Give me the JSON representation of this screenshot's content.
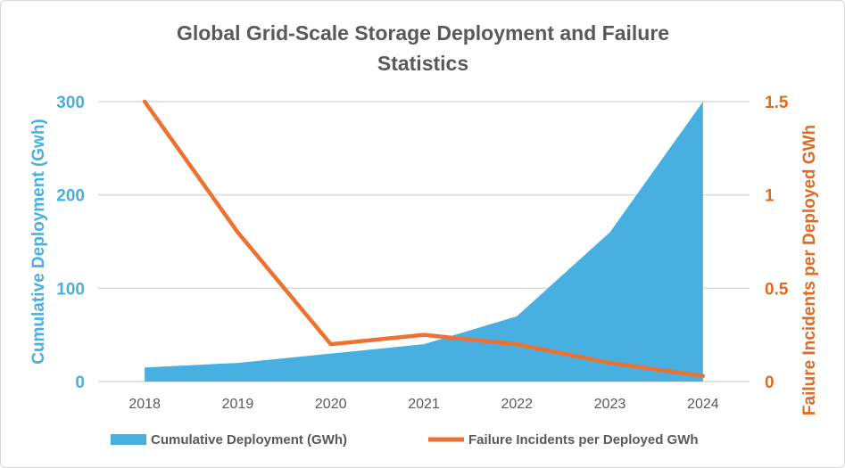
{
  "chart_data": {
    "type": "area+line",
    "title": "Global Grid-Scale Storage Deployment and Failure Statistics",
    "title_lines": [
      "Global Grid-Scale Storage Deployment and Failure",
      "Statistics"
    ],
    "categories": [
      "2018",
      "2019",
      "2020",
      "2021",
      "2022",
      "2023",
      "2024"
    ],
    "y_left": {
      "label": "Cumulative Deployment (Gwh)",
      "range": [
        0,
        300
      ],
      "ticks": [
        "0",
        "100",
        "200",
        "300"
      ],
      "tick_values": [
        0,
        100,
        200,
        300
      ],
      "color": "#47b0e0"
    },
    "y_right": {
      "label": "Failure Incidents per Deployed GWh",
      "range": [
        0,
        1.5
      ],
      "ticks": [
        "0",
        "0.5",
        "1",
        "1.5"
      ],
      "tick_values": [
        0,
        0.5,
        1,
        1.5
      ],
      "color": "#e06a22"
    },
    "grid": true,
    "legend_position": "bottom",
    "series": [
      {
        "name": "Cumulative Deployment (GWh)",
        "type": "area",
        "axis": "left",
        "color": "#47b0e0",
        "values": [
          15,
          20,
          30,
          40,
          70,
          160,
          300
        ]
      },
      {
        "name": "Failure Incidents per Deployed GWh",
        "type": "line",
        "axis": "right",
        "color": "#ed7130",
        "values": [
          1.5,
          0.8,
          0.2,
          0.25,
          0.2,
          0.1,
          0.03
        ]
      }
    ]
  }
}
